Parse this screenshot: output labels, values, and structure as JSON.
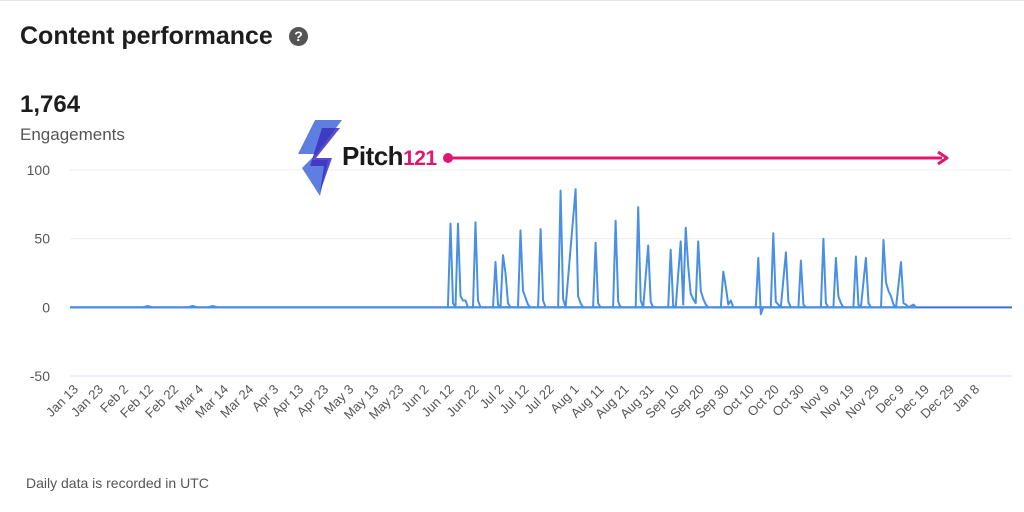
{
  "header": {
    "title": "Content performance",
    "help_glyph": "?"
  },
  "metric": {
    "value": "1,764",
    "label": "Engagements"
  },
  "footnote": "Daily data is recorded in UTC",
  "logo": {
    "name": "Pitch",
    "number": "121",
    "accent_color": "#e0176d"
  },
  "colors": {
    "line": "#4a90e2",
    "arrow": "#e0176d",
    "grid": "#ececec",
    "zero_line": "#3a6fd8"
  },
  "chart_data": {
    "type": "line",
    "title": "",
    "xlabel": "",
    "ylabel": "",
    "ylim": [
      -50,
      100
    ],
    "yticks": [
      100,
      50,
      0,
      -50
    ],
    "grid": true,
    "x_tick_labels": [
      "Jan 13",
      "Jan 23",
      "Feb 2",
      "Feb 12",
      "Feb 22",
      "Mar 4",
      "Mar 14",
      "Mar 24",
      "Apr 3",
      "Apr 13",
      "Apr 23",
      "May 3",
      "May 13",
      "May 23",
      "Jun 2",
      "Jun 12",
      "Jun 22",
      "Jul 2",
      "Jul 12",
      "Jul 22",
      "Aug 1",
      "Aug 11",
      "Aug 21",
      "Aug 31",
      "Sep 10",
      "Sep 20",
      "Sep 30",
      "Oct 10",
      "Oct 20",
      "Oct 30",
      "Nov 9",
      "Nov 19",
      "Nov 29",
      "Dec 9",
      "Dec 19",
      "Dec 29",
      "Jan 8"
    ],
    "series": [
      {
        "name": "",
        "points": [
          {
            "x": "Jan 13",
            "y": 0
          },
          {
            "x": "Feb 9",
            "y": 0
          },
          {
            "x": "Feb 11",
            "y": 1
          },
          {
            "x": "Feb 13",
            "y": 0
          },
          {
            "x": "Feb 27",
            "y": 0
          },
          {
            "x": "Mar 1",
            "y": 1
          },
          {
            "x": "Mar 3",
            "y": 0
          },
          {
            "x": "Mar 7",
            "y": 0
          },
          {
            "x": "Mar 9",
            "y": 1
          },
          {
            "x": "Mar 11",
            "y": 0
          },
          {
            "x": "Jun 11",
            "y": 0
          },
          {
            "x": "Jun 12",
            "y": 61
          },
          {
            "x": "Jun 13",
            "y": 3
          },
          {
            "x": "Jun 14",
            "y": 0
          },
          {
            "x": "Jun 15",
            "y": 61
          },
          {
            "x": "Jun 16",
            "y": 8
          },
          {
            "x": "Jun 17",
            "y": 5
          },
          {
            "x": "Jun 18",
            "y": 5
          },
          {
            "x": "Jun 19",
            "y": 0
          },
          {
            "x": "Jun 21",
            "y": 0
          },
          {
            "x": "Jun 22",
            "y": 62
          },
          {
            "x": "Jun 23",
            "y": 5
          },
          {
            "x": "Jun 24",
            "y": 0
          },
          {
            "x": "Jun 29",
            "y": 0
          },
          {
            "x": "Jun 30",
            "y": 33
          },
          {
            "x": "Jul 1",
            "y": 2
          },
          {
            "x": "Jul 2",
            "y": 0
          },
          {
            "x": "Jul 3",
            "y": 38
          },
          {
            "x": "Jul 4",
            "y": 25
          },
          {
            "x": "Jul 5",
            "y": 3
          },
          {
            "x": "Jul 6",
            "y": 0
          },
          {
            "x": "Jul 9",
            "y": 0
          },
          {
            "x": "Jul 10",
            "y": 56
          },
          {
            "x": "Jul 11",
            "y": 12
          },
          {
            "x": "Jul 12",
            "y": 7
          },
          {
            "x": "Jul 13",
            "y": 2
          },
          {
            "x": "Jul 14",
            "y": 0
          },
          {
            "x": "Jul 17",
            "y": 0
          },
          {
            "x": "Jul 18",
            "y": 57
          },
          {
            "x": "Jul 19",
            "y": 5
          },
          {
            "x": "Jul 20",
            "y": 0
          },
          {
            "x": "Jul 25",
            "y": 0
          },
          {
            "x": "Jul 26",
            "y": 85
          },
          {
            "x": "Jul 27",
            "y": 6
          },
          {
            "x": "Jul 28",
            "y": 0
          },
          {
            "x": "Aug 1",
            "y": 86
          },
          {
            "x": "Aug 2",
            "y": 8
          },
          {
            "x": "Aug 3",
            "y": 3
          },
          {
            "x": "Aug 4",
            "y": 0
          },
          {
            "x": "Aug 8",
            "y": 0
          },
          {
            "x": "Aug 9",
            "y": 47
          },
          {
            "x": "Aug 10",
            "y": 3
          },
          {
            "x": "Aug 11",
            "y": 0
          },
          {
            "x": "Aug 16",
            "y": 0
          },
          {
            "x": "Aug 17",
            "y": 63
          },
          {
            "x": "Aug 18",
            "y": 4
          },
          {
            "x": "Aug 19",
            "y": 0
          },
          {
            "x": "Aug 25",
            "y": 0
          },
          {
            "x": "Aug 26",
            "y": 73
          },
          {
            "x": "Aug 27",
            "y": 5
          },
          {
            "x": "Aug 28",
            "y": 0
          },
          {
            "x": "Aug 30",
            "y": 45
          },
          {
            "x": "Aug 31",
            "y": 4
          },
          {
            "x": "Sep 1",
            "y": 0
          },
          {
            "x": "Sep 7",
            "y": 0
          },
          {
            "x": "Sep 8",
            "y": 42
          },
          {
            "x": "Sep 9",
            "y": 1
          },
          {
            "x": "Sep 10",
            "y": 0
          },
          {
            "x": "Sep 12",
            "y": 48
          },
          {
            "x": "Sep 13",
            "y": 2
          },
          {
            "x": "Sep 14",
            "y": 58
          },
          {
            "x": "Sep 15",
            "y": 30
          },
          {
            "x": "Sep 16",
            "y": 10
          },
          {
            "x": "Sep 17",
            "y": 6
          },
          {
            "x": "Sep 18",
            "y": 3
          },
          {
            "x": "Sep 19",
            "y": 48
          },
          {
            "x": "Sep 20",
            "y": 12
          },
          {
            "x": "Sep 21",
            "y": 6
          },
          {
            "x": "Sep 22",
            "y": 2
          },
          {
            "x": "Sep 23",
            "y": 0
          },
          {
            "x": "Sep 28",
            "y": 0
          },
          {
            "x": "Sep 29",
            "y": 26
          },
          {
            "x": "Sep 30",
            "y": 15
          },
          {
            "x": "Oct 1",
            "y": 2
          },
          {
            "x": "Oct 2",
            "y": 5
          },
          {
            "x": "Oct 3",
            "y": 0
          },
          {
            "x": "Oct 12",
            "y": 0
          },
          {
            "x": "Oct 13",
            "y": 36
          },
          {
            "x": "Oct 14",
            "y": -5
          },
          {
            "x": "Oct 15",
            "y": 0
          },
          {
            "x": "Oct 18",
            "y": 0
          },
          {
            "x": "Oct 19",
            "y": 54
          },
          {
            "x": "Oct 20",
            "y": 4
          },
          {
            "x": "Oct 21",
            "y": 2
          },
          {
            "x": "Oct 22",
            "y": 0
          },
          {
            "x": "Oct 24",
            "y": 40
          },
          {
            "x": "Oct 25",
            "y": 4
          },
          {
            "x": "Oct 26",
            "y": 0
          },
          {
            "x": "Oct 29",
            "y": 0
          },
          {
            "x": "Oct 30",
            "y": 34
          },
          {
            "x": "Oct 31",
            "y": 2
          },
          {
            "x": "Nov 1",
            "y": 0
          },
          {
            "x": "Nov 7",
            "y": 0
          },
          {
            "x": "Nov 8",
            "y": 50
          },
          {
            "x": "Nov 9",
            "y": 3
          },
          {
            "x": "Nov 10",
            "y": 0
          },
          {
            "x": "Nov 12",
            "y": 0
          },
          {
            "x": "Nov 13",
            "y": 36
          },
          {
            "x": "Nov 14",
            "y": 8
          },
          {
            "x": "Nov 15",
            "y": 3
          },
          {
            "x": "Nov 16",
            "y": 0
          },
          {
            "x": "Nov 20",
            "y": 0
          },
          {
            "x": "Nov 21",
            "y": 37
          },
          {
            "x": "Nov 22",
            "y": 2
          },
          {
            "x": "Nov 23",
            "y": 0
          },
          {
            "x": "Nov 25",
            "y": 36
          },
          {
            "x": "Nov 26",
            "y": 3
          },
          {
            "x": "Nov 27",
            "y": 0
          },
          {
            "x": "Dec 1",
            "y": 0
          },
          {
            "x": "Dec 2",
            "y": 49
          },
          {
            "x": "Dec 3",
            "y": 18
          },
          {
            "x": "Dec 4",
            "y": 12
          },
          {
            "x": "Dec 5",
            "y": 8
          },
          {
            "x": "Dec 6",
            "y": 2
          },
          {
            "x": "Dec 7",
            "y": 0
          },
          {
            "x": "Dec 9",
            "y": 33
          },
          {
            "x": "Dec 10",
            "y": 3
          },
          {
            "x": "Dec 11",
            "y": 2
          },
          {
            "x": "Dec 12",
            "y": 0
          },
          {
            "x": "Dec 14",
            "y": 2
          },
          {
            "x": "Dec 15",
            "y": 0
          },
          {
            "x": "Jan 11",
            "y": 0
          }
        ]
      }
    ]
  }
}
